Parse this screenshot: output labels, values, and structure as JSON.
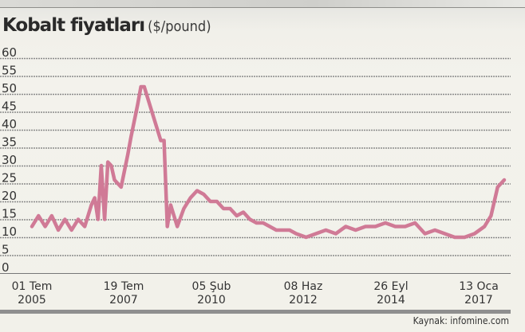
{
  "title": {
    "main": "Kobalt fiyatları",
    "unit": "($/pound)"
  },
  "source": "Kaynak: infomine.com",
  "colors": {
    "line": "#d07a96",
    "grid": "#8a8a8a",
    "axis": "#777777",
    "bottom_bar": "#8f8f8f"
  },
  "chart_data": {
    "type": "line",
    "title": "Kobalt fiyatları ($/pound)",
    "xlabel": "",
    "ylabel": "$/pound",
    "ylim": [
      0,
      60
    ],
    "yticks": [
      0,
      5,
      10,
      15,
      20,
      25,
      30,
      35,
      40,
      45,
      50,
      55,
      60
    ],
    "xticks": [
      "01 Tem 2005",
      "19 Tem 2007",
      "05 Şub 2010",
      "08 Haz 2012",
      "26 Eyl 2014",
      "13 Oca 2017"
    ],
    "grid": true,
    "legend": null,
    "series": [
      {
        "name": "Kobalt ($/pound)",
        "x": [
          "2005-07",
          "2005-09",
          "2005-11",
          "2006-01",
          "2006-03",
          "2006-05",
          "2006-07",
          "2006-09",
          "2006-11",
          "2007-01",
          "2007-02",
          "2007-03",
          "2007-04",
          "2007-05",
          "2007-06",
          "2007-07",
          "2007-08",
          "2007-10",
          "2007-12",
          "2008-01",
          "2008-03",
          "2008-04",
          "2008-05",
          "2008-06",
          "2008-08",
          "2008-10",
          "2008-11",
          "2008-12",
          "2009-01",
          "2009-03",
          "2009-05",
          "2009-07",
          "2009-09",
          "2009-11",
          "2010-01",
          "2010-03",
          "2010-05",
          "2010-07",
          "2010-09",
          "2010-11",
          "2011-01",
          "2011-03",
          "2011-05",
          "2011-07",
          "2011-09",
          "2011-11",
          "2012-01",
          "2012-03",
          "2012-06",
          "2012-09",
          "2012-12",
          "2013-03",
          "2013-06",
          "2013-09",
          "2013-12",
          "2014-03",
          "2014-06",
          "2014-09",
          "2014-12",
          "2015-03",
          "2015-06",
          "2015-09",
          "2015-12",
          "2016-03",
          "2016-06",
          "2016-09",
          "2016-12",
          "2017-02",
          "2017-04",
          "2017-06"
        ],
        "values": [
          13,
          16,
          13,
          16,
          12,
          15,
          12,
          15,
          13,
          19,
          21,
          15,
          30,
          15,
          31,
          30,
          26,
          24,
          33,
          38,
          47,
          52,
          52,
          49,
          43,
          37,
          37,
          13,
          19,
          13,
          18,
          21,
          23,
          22,
          20,
          20,
          18,
          18,
          16,
          17,
          15,
          14,
          14,
          13,
          12,
          12,
          12,
          11,
          10,
          11,
          12,
          11,
          13,
          12,
          13,
          13,
          14,
          13,
          13,
          14,
          11,
          12,
          11,
          10,
          10,
          11,
          13,
          16,
          24,
          26
        ]
      }
    ]
  }
}
